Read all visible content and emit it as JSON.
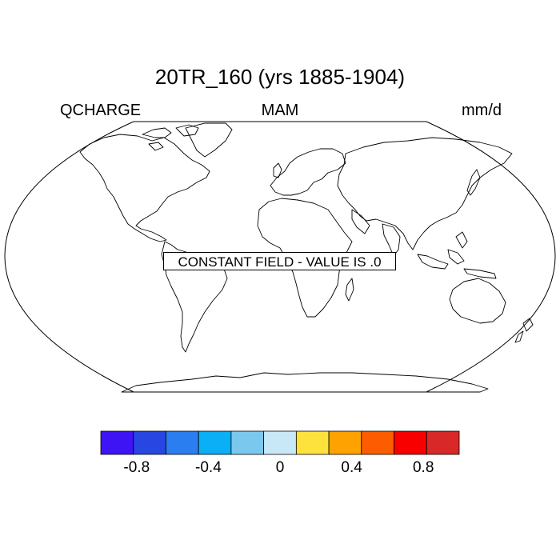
{
  "title": "20TR_160 (yrs 1885-1904)",
  "left_label": "QCHARGE",
  "center_label": "MAM",
  "right_label": "mm/d",
  "overlay_text": "CONSTANT FIELD - VALUE IS .0",
  "colorbar": {
    "colors": [
      "#3e14f5",
      "#2746e2",
      "#2b7ef0",
      "#0aaff5",
      "#7bc8ef",
      "#c8e8f8",
      "#fde13c",
      "#fda200",
      "#fd5c00",
      "#f80000",
      "#d82828"
    ],
    "tick_labels": [
      "-0.8",
      "-0.4",
      "0",
      "0.4",
      "0.8"
    ],
    "tick_values": [
      -0.8,
      -0.4,
      0,
      0.4,
      0.8
    ],
    "boundaries": [
      -1.0,
      -0.8,
      -0.6,
      -0.4,
      -0.2,
      0,
      0.2,
      0.4,
      0.6,
      0.8,
      1.0
    ]
  }
}
